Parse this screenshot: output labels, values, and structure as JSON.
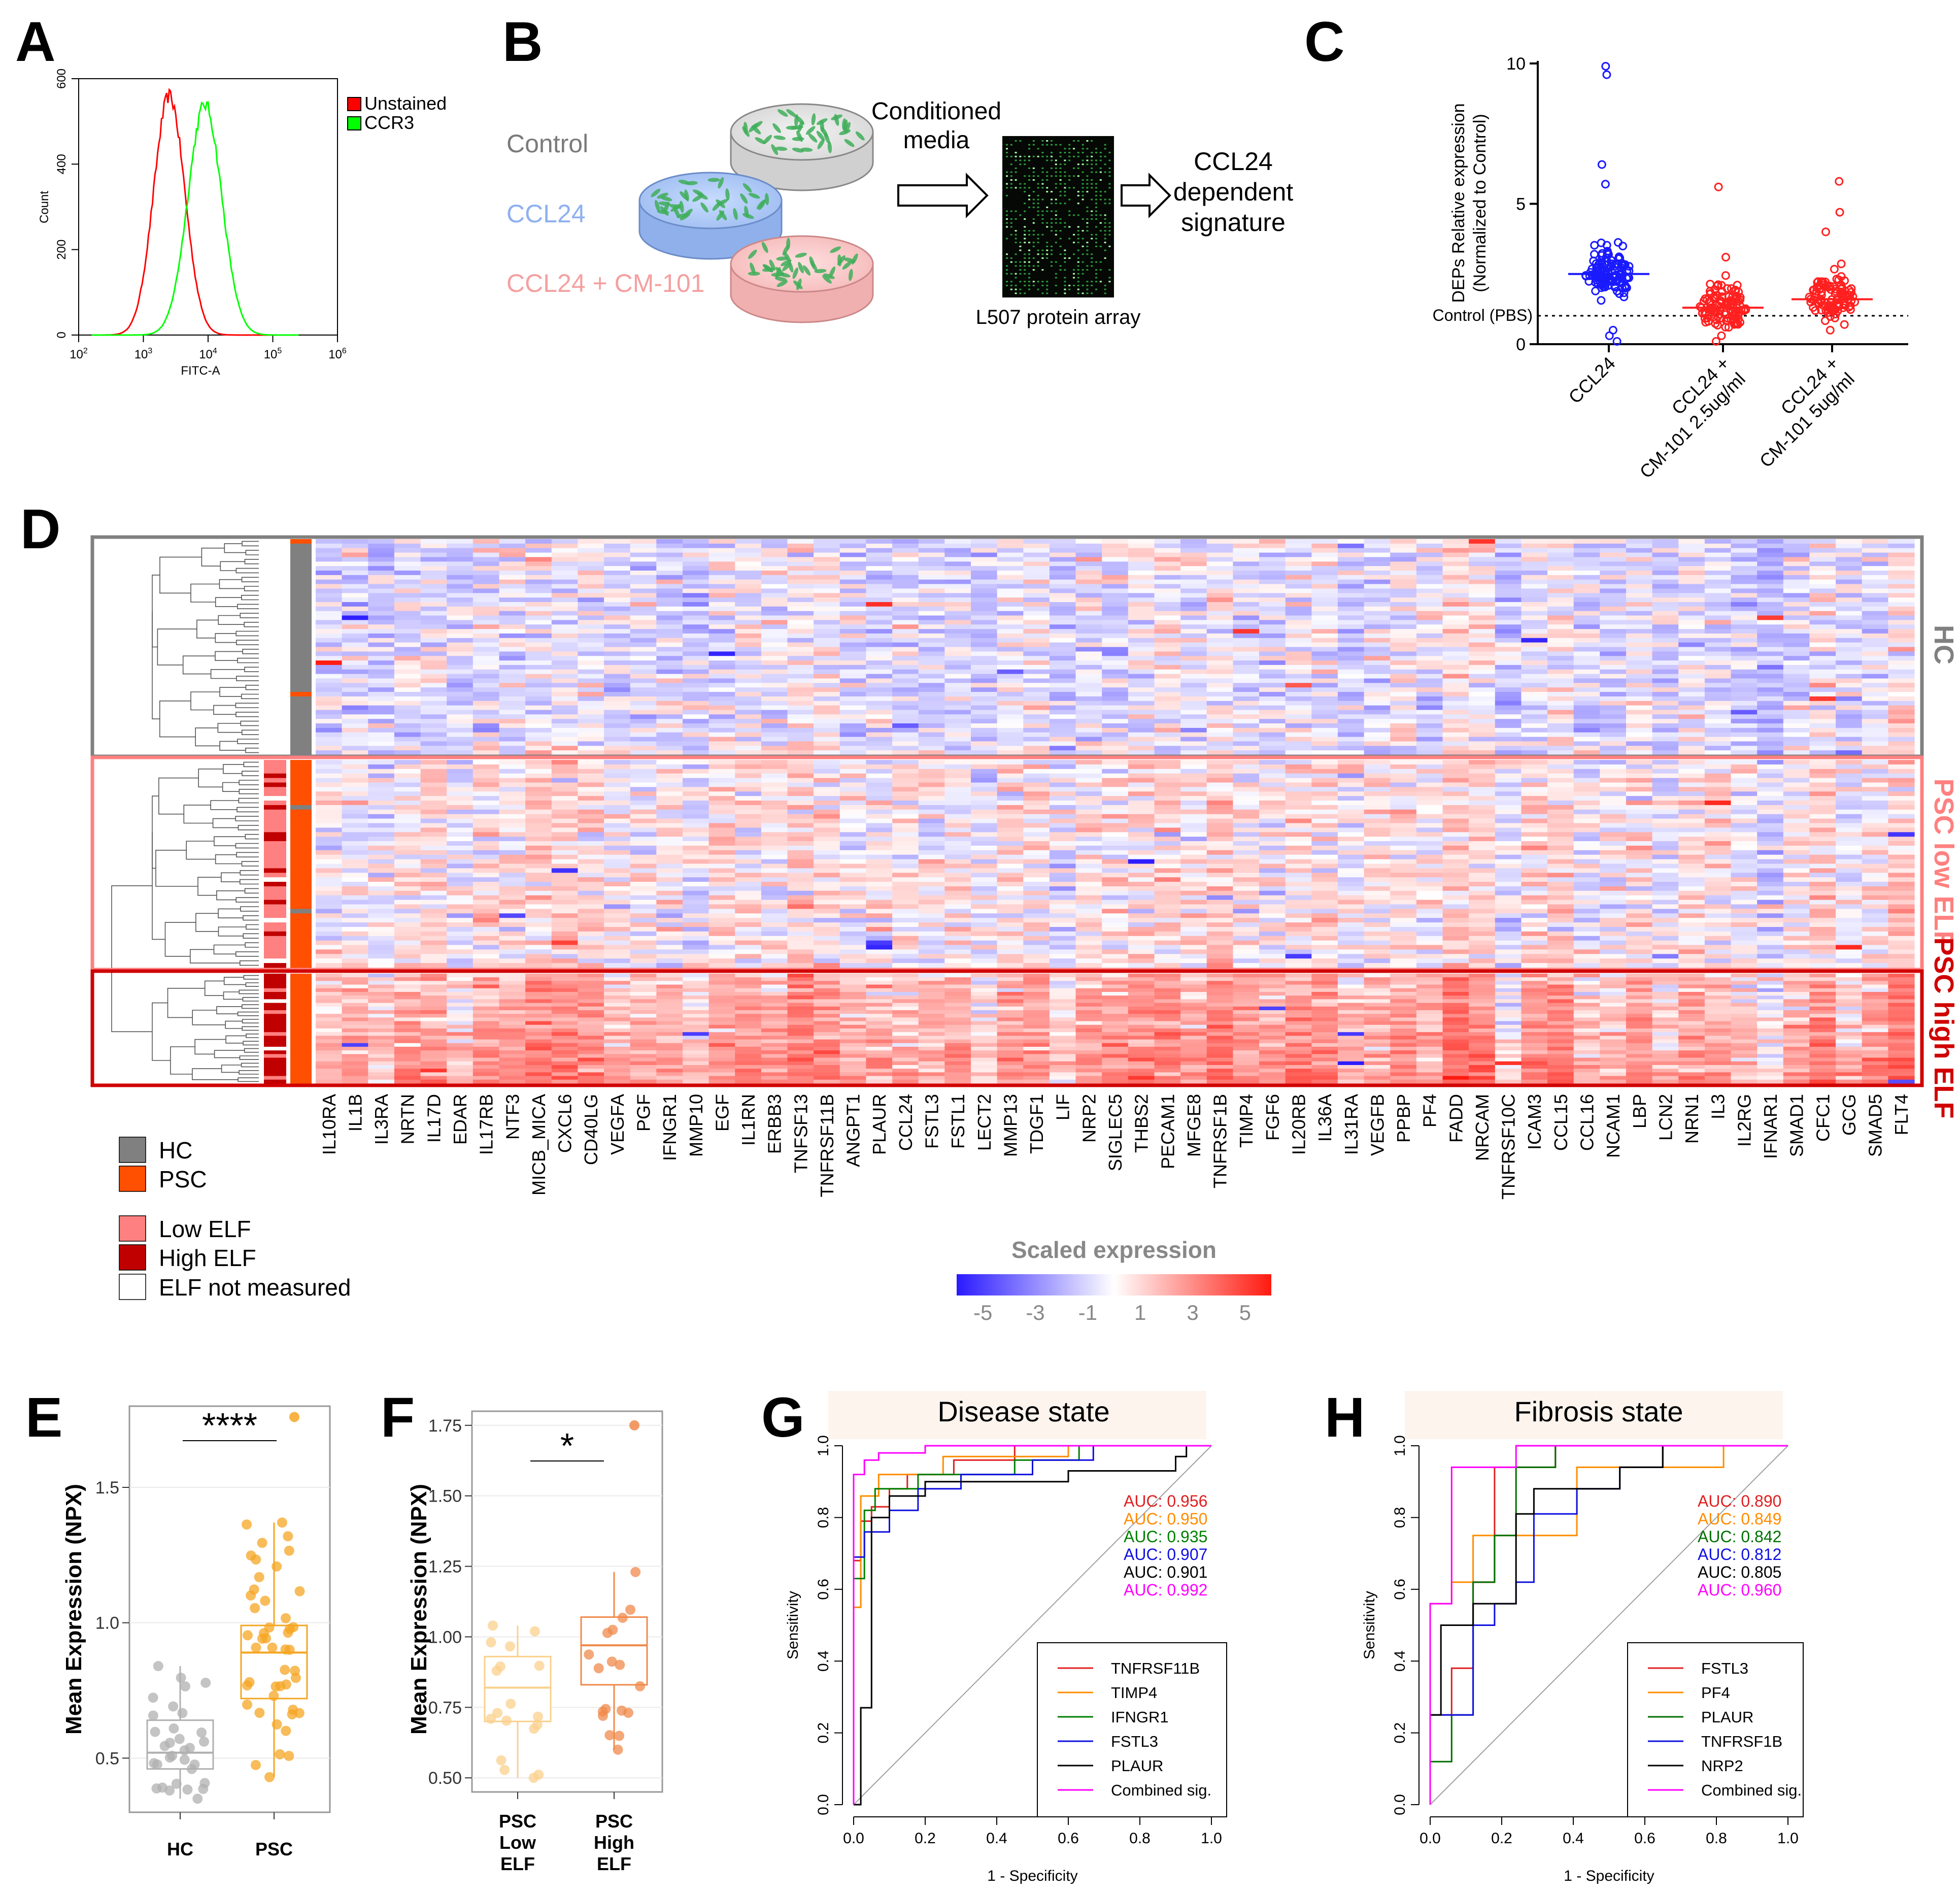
{
  "panel_letters": [
    "A",
    "B",
    "C",
    "D",
    "E",
    "F",
    "G",
    "H"
  ],
  "colors": {
    "unstained": "#ff0000",
    "ccr3": "#00ff00",
    "hc": "#808080",
    "psc": "#ff4f00",
    "low_elf": "#ff8080",
    "high_elf": "#c00000",
    "ccl24": "#1a1aff",
    "cm101": "#ff2020",
    "box_hc": "#b0b0b0",
    "box_psc": "#f5a623",
    "box_low": "#fbd08c",
    "box_high": "#f08a4b"
  },
  "chart_data": [
    {
      "id": "A",
      "type": "line",
      "title": "",
      "xlabel": "FITC-A",
      "ylabel": "Count",
      "xlim_log10": [
        2,
        6
      ],
      "ylim": [
        0,
        600
      ],
      "xticks": [
        "10^2",
        "10^3",
        "10^4",
        "10^5",
        "10^6"
      ],
      "yticks": [
        0,
        200,
        400,
        600
      ],
      "legend": [
        "Unstained",
        "CCR3"
      ],
      "series": [
        {
          "name": "Unstained",
          "peak_log10": 3.4,
          "peak_count": 560,
          "width": 0.24
        },
        {
          "name": "CCR3",
          "peak_log10": 3.95,
          "peak_count": 540,
          "width": 0.26
        }
      ]
    },
    {
      "id": "C",
      "type": "scatter",
      "ylabel": "DEPs Relative expression (Normalized to Control)",
      "ylim": [
        0,
        10
      ],
      "yticks": [
        0,
        5,
        10
      ],
      "reference_line": {
        "label": "Control (PBS)",
        "y": 1
      },
      "categories": [
        "CCL24",
        "CCL24 + CM-101 2.5ug/ml",
        "CCL24 + CM-101 5ug/ml"
      ],
      "medians": [
        2.5,
        1.3,
        1.6
      ],
      "highs": [
        [
          9.9,
          9.6,
          6.4,
          5.7
        ],
        [
          5.6,
          3.1
        ],
        [
          5.8,
          4.7,
          4.0
        ]
      ],
      "lows": [
        [
          0.3,
          0.1,
          0.5
        ],
        [
          0.1,
          0.3
        ],
        [
          0.5,
          0.7
        ]
      ]
    },
    {
      "id": "D",
      "type": "heatmap",
      "legend_title": "Scaled expression",
      "scale_ticks": [
        -5,
        -3,
        -1,
        1,
        3,
        5
      ],
      "groups": [
        "HC",
        "PSC low ELF",
        "PSC high ELF"
      ],
      "proteins": [
        "IL10RA",
        "IL1B",
        "IL3RA",
        "NRTN",
        "IL17D",
        "EDAR",
        "IL17RB",
        "NTF3",
        "MICB_MICA",
        "CXCL6",
        "CD40LG",
        "VEGFA",
        "PGF",
        "IFNGR1",
        "MMP10",
        "EGF",
        "IL1RN",
        "ERBB3",
        "TNFSF13",
        "TNFRSF11B",
        "ANGPT1",
        "PLAUR",
        "CCL24",
        "FSTL3",
        "FSTL1",
        "LECT2",
        "MMP13",
        "TDGF1",
        "LIF",
        "NRP2",
        "SIGLEC5",
        "THBS2",
        "PECAM1",
        "MFGE8",
        "TNFRSF1B",
        "TIMP4",
        "FGF6",
        "IL20RB",
        "IL36A",
        "IL31RA",
        "VEGFB",
        "PPBP",
        "PF4",
        "FADD",
        "NRCAM",
        "TNFRSF10C",
        "ICAM3",
        "CCL15",
        "CCL16",
        "NCAM1",
        "LBP",
        "LCN2",
        "NRN1",
        "IL3",
        "IL2RG",
        "IFNAR1",
        "SMAD1",
        "CFC1",
        "GCG",
        "SMAD5",
        "FLT4"
      ],
      "annotation_legend": [
        {
          "label": "HC",
          "color": "#808080"
        },
        {
          "label": "PSC",
          "color": "#ff4f00"
        },
        {
          "label": "Low ELF",
          "color": "#ff8080"
        },
        {
          "label": "High  ELF",
          "color": "#c00000"
        },
        {
          "label": "ELF not measured",
          "color": "#ffffff"
        }
      ]
    },
    {
      "id": "E",
      "type": "box",
      "ylabel": "Mean Expression (NPX)",
      "ylim": [
        0.3,
        1.8
      ],
      "yticks": [
        0.5,
        1.0,
        1.5
      ],
      "categories": [
        "HC",
        "PSC"
      ],
      "significance": "****",
      "boxes": [
        {
          "name": "HC",
          "min": 0.35,
          "q1": 0.46,
          "median": 0.52,
          "q3": 0.64,
          "max": 0.84
        },
        {
          "name": "PSC",
          "min": 0.43,
          "q1": 0.72,
          "median": 0.89,
          "q3": 0.99,
          "max": 1.37,
          "outliers": [
            1.76
          ]
        }
      ]
    },
    {
      "id": "F",
      "type": "box",
      "ylabel": "Mean Expression (NPX)",
      "ylim": [
        0.45,
        1.8
      ],
      "yticks": [
        0.5,
        0.75,
        1.0,
        1.25,
        1.5,
        1.75
      ],
      "categories": [
        "PSC Low ELF",
        "PSC High ELF"
      ],
      "significance": "*",
      "boxes": [
        {
          "name": "PSC Low ELF",
          "min": 0.5,
          "q1": 0.7,
          "median": 0.82,
          "q3": 0.93,
          "max": 1.04
        },
        {
          "name": "PSC High ELF",
          "min": 0.6,
          "q1": 0.83,
          "median": 0.97,
          "q3": 1.07,
          "max": 1.23,
          "outliers": [
            1.75
          ]
        }
      ]
    },
    {
      "id": "G",
      "type": "line",
      "title": "Disease state",
      "xlabel": "1 - Specificity",
      "ylabel": "Sensitivity",
      "xlim": [
        0,
        1
      ],
      "ylim": [
        0,
        1
      ],
      "ticks": [
        "0.0",
        "0.2",
        "0.4",
        "0.6",
        "0.8",
        "1.0"
      ],
      "series": [
        {
          "name": "TNFRSF11B",
          "color": "#e02020",
          "auc": "AUC: 0.956",
          "points": [
            [
              0,
              0
            ],
            [
              0,
              0.68
            ],
            [
              0.02,
              0.68
            ],
            [
              0.02,
              0.79
            ],
            [
              0.05,
              0.79
            ],
            [
              0.05,
              0.83
            ],
            [
              0.1,
              0.83
            ],
            [
              0.1,
              0.88
            ],
            [
              0.15,
              0.88
            ],
            [
              0.15,
              0.92
            ],
            [
              0.28,
              0.92
            ],
            [
              0.28,
              0.96
            ],
            [
              0.45,
              0.96
            ],
            [
              0.45,
              1
            ],
            [
              1,
              1
            ]
          ]
        },
        {
          "name": "TIMP4",
          "color": "#ff8c00",
          "auc": "AUC: 0.950",
          "points": [
            [
              0,
              0
            ],
            [
              0,
              0.55
            ],
            [
              0.02,
              0.55
            ],
            [
              0.02,
              0.86
            ],
            [
              0.07,
              0.86
            ],
            [
              0.07,
              0.92
            ],
            [
              0.25,
              0.92
            ],
            [
              0.25,
              0.97
            ],
            [
              0.6,
              0.97
            ],
            [
              0.6,
              1
            ],
            [
              1,
              1
            ]
          ]
        },
        {
          "name": "IFNGR1",
          "color": "#008000",
          "auc": "AUC: 0.935",
          "points": [
            [
              0,
              0
            ],
            [
              0,
              0.63
            ],
            [
              0.03,
              0.63
            ],
            [
              0.03,
              0.82
            ],
            [
              0.06,
              0.82
            ],
            [
              0.06,
              0.88
            ],
            [
              0.18,
              0.88
            ],
            [
              0.18,
              0.92
            ],
            [
              0.45,
              0.92
            ],
            [
              0.45,
              0.96
            ],
            [
              0.63,
              0.96
            ],
            [
              0.63,
              1
            ],
            [
              1,
              1
            ]
          ]
        },
        {
          "name": "FSTL3",
          "color": "#1010e0",
          "auc": "AUC: 0.907",
          "points": [
            [
              0,
              0
            ],
            [
              0,
              0.69
            ],
            [
              0.03,
              0.69
            ],
            [
              0.03,
              0.76
            ],
            [
              0.1,
              0.76
            ],
            [
              0.1,
              0.82
            ],
            [
              0.18,
              0.82
            ],
            [
              0.18,
              0.88
            ],
            [
              0.3,
              0.88
            ],
            [
              0.3,
              0.92
            ],
            [
              0.5,
              0.92
            ],
            [
              0.5,
              0.96
            ],
            [
              0.67,
              0.96
            ],
            [
              0.67,
              1
            ],
            [
              1,
              1
            ]
          ]
        },
        {
          "name": "PLAUR",
          "color": "#000000",
          "auc": "AUC: 0.901",
          "points": [
            [
              0,
              0
            ],
            [
              0.02,
              0
            ],
            [
              0.02,
              0.27
            ],
            [
              0.05,
              0.27
            ],
            [
              0.05,
              0.8
            ],
            [
              0.1,
              0.8
            ],
            [
              0.1,
              0.86
            ],
            [
              0.2,
              0.86
            ],
            [
              0.2,
              0.9
            ],
            [
              0.6,
              0.9
            ],
            [
              0.6,
              0.93
            ],
            [
              0.9,
              0.93
            ],
            [
              0.9,
              0.97
            ],
            [
              0.93,
              0.97
            ],
            [
              0.93,
              1
            ],
            [
              1,
              1
            ]
          ]
        },
        {
          "name": "Combined sig.",
          "color": "#ff00ff",
          "auc": "AUC: 0.992",
          "points": [
            [
              0,
              0
            ],
            [
              0,
              0.92
            ],
            [
              0.03,
              0.92
            ],
            [
              0.03,
              0.96
            ],
            [
              0.07,
              0.96
            ],
            [
              0.07,
              0.98
            ],
            [
              0.2,
              0.98
            ],
            [
              0.2,
              1
            ],
            [
              1,
              1
            ]
          ]
        }
      ]
    },
    {
      "id": "H",
      "type": "line",
      "title": "Fibrosis state",
      "xlabel": "1 - Specificity",
      "ylabel": "Sensitivity",
      "xlim": [
        0,
        1
      ],
      "ylim": [
        0,
        1
      ],
      "ticks": [
        "0.0",
        "0.2",
        "0.4",
        "0.6",
        "0.8",
        "1.0"
      ],
      "series": [
        {
          "name": "FSTL3",
          "color": "#e02020",
          "auc": "AUC: 0.890",
          "points": [
            [
              0,
              0
            ],
            [
              0,
              0.25
            ],
            [
              0.06,
              0.25
            ],
            [
              0.06,
              0.38
            ],
            [
              0.12,
              0.38
            ],
            [
              0.12,
              0.62
            ],
            [
              0.18,
              0.62
            ],
            [
              0.18,
              0.94
            ],
            [
              0.35,
              0.94
            ],
            [
              0.35,
              1
            ],
            [
              1,
              1
            ]
          ]
        },
        {
          "name": "PF4",
          "color": "#ff8c00",
          "auc": "AUC: 0.849",
          "points": [
            [
              0,
              0
            ],
            [
              0,
              0.56
            ],
            [
              0.06,
              0.56
            ],
            [
              0.06,
              0.62
            ],
            [
              0.12,
              0.62
            ],
            [
              0.12,
              0.75
            ],
            [
              0.41,
              0.75
            ],
            [
              0.41,
              0.94
            ],
            [
              0.82,
              0.94
            ],
            [
              0.82,
              1
            ],
            [
              1,
              1
            ]
          ]
        },
        {
          "name": "PLAUR",
          "color": "#007000",
          "auc": "AUC: 0.842",
          "points": [
            [
              0,
              0
            ],
            [
              0,
              0.12
            ],
            [
              0.06,
              0.12
            ],
            [
              0.06,
              0.25
            ],
            [
              0.12,
              0.25
            ],
            [
              0.12,
              0.62
            ],
            [
              0.18,
              0.62
            ],
            [
              0.18,
              0.75
            ],
            [
              0.24,
              0.75
            ],
            [
              0.24,
              0.94
            ],
            [
              0.35,
              0.94
            ],
            [
              0.35,
              1
            ],
            [
              1,
              1
            ]
          ]
        },
        {
          "name": "TNFRSF1B",
          "color": "#1010e0",
          "auc": "AUC: 0.812",
          "points": [
            [
              0,
              0
            ],
            [
              0,
              0.25
            ],
            [
              0.12,
              0.25
            ],
            [
              0.12,
              0.5
            ],
            [
              0.18,
              0.5
            ],
            [
              0.18,
              0.56
            ],
            [
              0.24,
              0.56
            ],
            [
              0.24,
              0.62
            ],
            [
              0.29,
              0.62
            ],
            [
              0.29,
              0.81
            ],
            [
              0.41,
              0.81
            ],
            [
              0.41,
              0.88
            ],
            [
              0.53,
              0.88
            ],
            [
              0.53,
              0.94
            ],
            [
              0.65,
              0.94
            ],
            [
              0.65,
              1
            ],
            [
              1,
              1
            ]
          ]
        },
        {
          "name": "NRP2",
          "color": "#000000",
          "auc": "AUC: 0.805",
          "points": [
            [
              0,
              0
            ],
            [
              0,
              0.25
            ],
            [
              0.03,
              0.25
            ],
            [
              0.03,
              0.5
            ],
            [
              0.12,
              0.5
            ],
            [
              0.12,
              0.56
            ],
            [
              0.24,
              0.56
            ],
            [
              0.24,
              0.81
            ],
            [
              0.29,
              0.81
            ],
            [
              0.29,
              0.88
            ],
            [
              0.53,
              0.88
            ],
            [
              0.53,
              0.94
            ],
            [
              0.65,
              0.94
            ],
            [
              0.65,
              1
            ],
            [
              1,
              1
            ]
          ]
        },
        {
          "name": "Combined sig.",
          "color": "#ff00ff",
          "auc": "AUC: 0.960",
          "points": [
            [
              0,
              0
            ],
            [
              0,
              0.56
            ],
            [
              0.06,
              0.56
            ],
            [
              0.06,
              0.94
            ],
            [
              0.24,
              0.94
            ],
            [
              0.24,
              1
            ],
            [
              1,
              1
            ]
          ]
        }
      ]
    }
  ],
  "panelB": {
    "conditions": [
      "Control",
      "CCL24",
      "CCL24 + CM-101"
    ],
    "arrow_label": "Conditioned\nmedia",
    "array_label": "L507 protein array",
    "result_label": "CCL24\ndependent\nsignature"
  },
  "panelD": {
    "side_labels": [
      "HC",
      "PSC low ELF",
      "PSC high ELF"
    ]
  },
  "panelF": {
    "cat_lines": [
      [
        "PSC",
        "Low",
        "ELF"
      ],
      [
        "PSC",
        "High",
        "ELF"
      ]
    ]
  }
}
